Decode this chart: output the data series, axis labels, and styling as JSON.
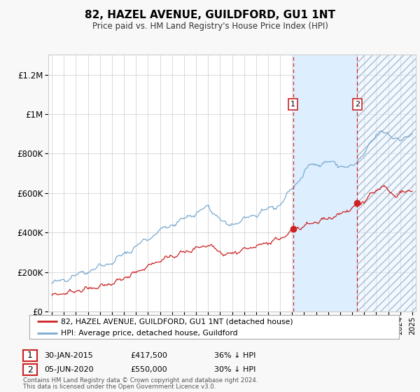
{
  "title": "82, HAZEL AVENUE, GUILDFORD, GU1 1NT",
  "subtitle": "Price paid vs. HM Land Registry's House Price Index (HPI)",
  "ylim": [
    0,
    1300000
  ],
  "yticks": [
    0,
    200000,
    400000,
    600000,
    800000,
    1000000,
    1200000
  ],
  "ytick_labels": [
    "£0",
    "£200K",
    "£400K",
    "£600K",
    "£800K",
    "£1M",
    "£1.2M"
  ],
  "x_start_year": 1995,
  "x_end_year": 2025,
  "hpi_color": "#7aaad0",
  "price_color": "#cc2222",
  "sale1_date": 2015.08,
  "sale1_price": 417500,
  "sale1_label": "1",
  "sale1_text": "30-JAN-2015",
  "sale1_value_text": "£417,500",
  "sale1_pct_text": "36% ↓ HPI",
  "sale2_date": 2020.43,
  "sale2_price": 550000,
  "sale2_label": "2",
  "sale2_text": "05-JUN-2020",
  "sale2_value_text": "£550,000",
  "sale2_pct_text": "30% ↓ HPI",
  "shaded_region_color": "#ddeeff",
  "legend_label1": "82, HAZEL AVENUE, GUILDFORD, GU1 1NT (detached house)",
  "legend_label2": "HPI: Average price, detached house, Guildford",
  "footer1": "Contains HM Land Registry data © Crown copyright and database right 2024.",
  "footer2": "This data is licensed under the Open Government Licence v3.0.",
  "background_color": "#f8f8f8",
  "plot_bg_color": "#ffffff"
}
